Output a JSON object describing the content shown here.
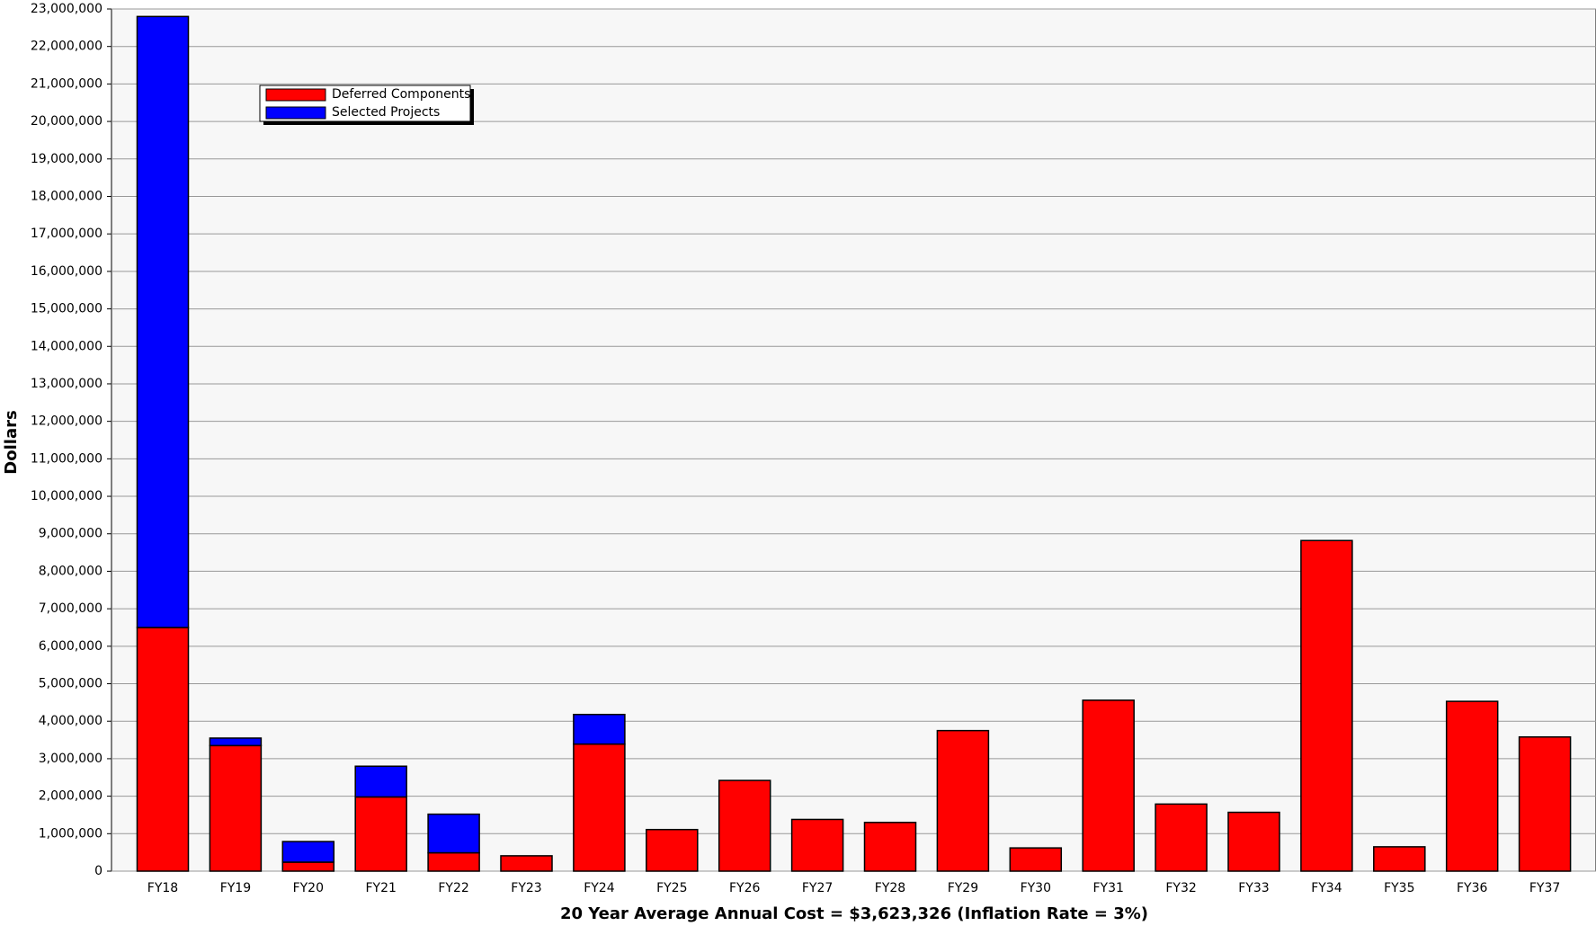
{
  "chart_data": {
    "type": "stacked_bar",
    "y_label": "Dollars",
    "x_label": "20 Year Average Annual Cost = $3,623,326  (Inflation Rate = 3%)",
    "categories": [
      "FY18",
      "FY19",
      "FY20",
      "FY21",
      "FY22",
      "FY23",
      "FY24",
      "FY25",
      "FY26",
      "FY27",
      "FY28",
      "FY29",
      "FY30",
      "FY31",
      "FY32",
      "FY33",
      "FY34",
      "FY35",
      "FY36",
      "FY37"
    ],
    "series": [
      {
        "name": "Deferred Components",
        "color": "#ff0000",
        "values": [
          6500000,
          3350000,
          240000,
          1980000,
          490000,
          410000,
          3390000,
          1110000,
          2420000,
          1380000,
          1300000,
          3750000,
          620000,
          4560000,
          1790000,
          1570000,
          8820000,
          650000,
          4530000,
          3580000
        ]
      },
      {
        "name": "Selected Projects",
        "color": "#0000ff",
        "values": [
          16300000,
          200000,
          550000,
          820000,
          1030000,
          0,
          790000,
          0,
          0,
          0,
          0,
          0,
          0,
          0,
          0,
          0,
          0,
          0,
          0,
          0
        ]
      }
    ],
    "ylim": [
      0,
      23000000
    ],
    "yticks": [
      0,
      {
        "value": 1000000,
        "label": "1,000,000"
      },
      {
        "value": 2000000,
        "label": "2,000,000"
      },
      {
        "value": 3000000,
        "label": "3,000,000"
      },
      {
        "value": 4000000,
        "label": "4,000,000"
      },
      {
        "value": 5000000,
        "label": "5,000,000"
      },
      {
        "value": 6000000,
        "label": "6,000,000"
      },
      {
        "value": 7000000,
        "label": "7,000,000"
      },
      {
        "value": 8000000,
        "label": "8,000,000"
      },
      {
        "value": 9000000,
        "label": "9,000,000"
      },
      {
        "value": 10000000,
        "label": "10,000,000"
      },
      {
        "value": 11000000,
        "label": "11,000,000"
      },
      {
        "value": 12000000,
        "label": "12,000,000"
      },
      {
        "value": 13000000,
        "label": "13,000,000"
      },
      {
        "value": 14000000,
        "label": "14,000,000"
      },
      {
        "value": 15000000,
        "label": "15,000,000"
      },
      {
        "value": 16000000,
        "label": "16,000,000"
      },
      {
        "value": 17000000,
        "label": "17,000,000"
      },
      {
        "value": 18000000,
        "label": "18,000,000"
      },
      {
        "value": 19000000,
        "label": "19,000,000"
      },
      {
        "value": 20000000,
        "label": "20,000,000"
      },
      {
        "value": 21000000,
        "label": "21,000,000"
      },
      {
        "value": 22000000,
        "label": "22,000,000"
      },
      {
        "value": 23000000,
        "label": "23,000,000"
      }
    ],
    "grid": true,
    "legend": "upper left"
  }
}
